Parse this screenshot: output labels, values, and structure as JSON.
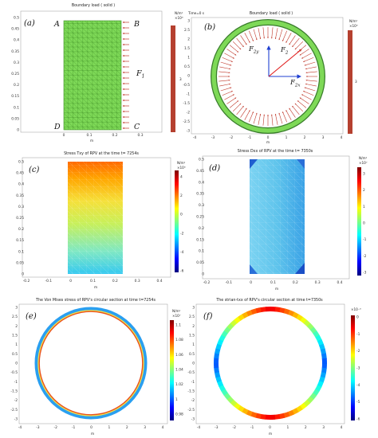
{
  "panels": {
    "a": {
      "label": "(a)",
      "title": "Boundary load ( solid )",
      "corners": {
        "tl": "A",
        "tr": "B",
        "bl": "D",
        "br": "C"
      },
      "force": {
        "main": "F",
        "sub": "1"
      },
      "xticks": [
        "0",
        "0.1",
        "0.2",
        "0.3"
      ],
      "yticks": [
        "0",
        "0.05",
        "0.1",
        "0.15",
        "0.2",
        "0.25",
        "0.3",
        "0.35",
        "0.4",
        "0.45",
        "0.5"
      ],
      "xlabel": "m",
      "bar_unit": "N/m²",
      "bar_exp": "×10⁶",
      "bar_value": "3"
    },
    "b": {
      "label": "(b)",
      "time": "Time=0 s",
      "title": "Boundary load ( solid )",
      "vectors": [
        {
          "main": "F",
          "sub": "2y"
        },
        {
          "main": "F",
          "sub": "2"
        },
        {
          "main": "F",
          "sub": "2x"
        }
      ],
      "xticks": [
        "-4",
        "-3",
        "-2",
        "-1",
        "0",
        "1",
        "2",
        "3",
        "4"
      ],
      "yticks": [
        "-3",
        "-2.5",
        "-2",
        "-1.5",
        "-1",
        "-0.5",
        "0",
        "0.5",
        "1",
        "1.5",
        "2",
        "2.5",
        "3"
      ],
      "xlabel": "m",
      "bar_unit": "N/m²",
      "bar_exp": "×10⁶",
      "bar_value": "3"
    },
    "c": {
      "label": "(c)",
      "title": "Stress Txy of RPV at the time t= 7254s",
      "xticks": [
        "-0.2",
        "-0.1",
        "0",
        "0.1",
        "0.2",
        "0.3",
        "0.4"
      ],
      "yticks": [
        "0",
        "0.05",
        "0.1",
        "0.15",
        "0.2",
        "0.25",
        "0.3",
        "0.35",
        "0.4",
        "0.45",
        "0.5"
      ],
      "xlabel": "m",
      "cb_unit": "N/m²",
      "cb_exp": "×10⁶",
      "cb_ticks": [
        "4",
        "2",
        "0",
        "-2",
        "-4",
        "-6"
      ]
    },
    "d": {
      "label": "(d)",
      "title": "Stress Dxx of RPV at the time t= 7350s",
      "xticks": [
        "-0.2",
        "-0.1",
        "0",
        "0.1",
        "0.2",
        "0.3",
        "0.4"
      ],
      "yticks": [
        "0",
        "0.05",
        "0.1",
        "0.15",
        "0.2",
        "0.25",
        "0.3",
        "0.35",
        "0.4",
        "0.45",
        "0.5"
      ],
      "xlabel": "m",
      "cb_unit": "N/m²",
      "cb_exp": "×10⁷",
      "cb_ticks": [
        "3",
        "2",
        "1",
        "0",
        "-1",
        "-2",
        "-3"
      ]
    },
    "e": {
      "label": "(e)",
      "title": "The Von Mises stress of RPV's circular section at time t=7254s",
      "xticks": [
        "-4",
        "-3",
        "-2",
        "-1",
        "0",
        "1",
        "2",
        "3",
        "4"
      ],
      "yticks": [
        "-3",
        "-2.5",
        "-2",
        "-1.5",
        "-1",
        "-0.5",
        "0",
        "0.5",
        "1",
        "1.5",
        "2",
        "2.5",
        "3"
      ],
      "xlabel": "m",
      "cb_unit": "N/m²",
      "cb_exp": "×10⁷",
      "cb_ticks": [
        "1.1",
        "1.08",
        "1.06",
        "1.04",
        "1.02",
        "1",
        "0.98"
      ]
    },
    "f": {
      "label": "(f)",
      "title": "The strian-txx of RPV's circular section at time t=7350s",
      "xticks": [
        "-4",
        "-3",
        "-2",
        "-1",
        "0",
        "1",
        "2",
        "3",
        "4"
      ],
      "yticks": [
        "-3",
        "-2.5",
        "-2",
        "-1.5",
        "-1",
        "-0.5",
        "0",
        "0.5",
        "1",
        "1.5",
        "2",
        "2.5",
        "3"
      ],
      "xlabel": "m",
      "cb_exp": "×10⁻³",
      "cb_ticks": [
        "0",
        "-1",
        "-2",
        "-3",
        "-4",
        "-5",
        "-6"
      ]
    }
  },
  "colors": {
    "mesh": "#7ed957",
    "ring": "#3a7d2c",
    "arrow": "#c0392b",
    "vector": "#1f3fd1",
    "bar": "#b5402f"
  }
}
